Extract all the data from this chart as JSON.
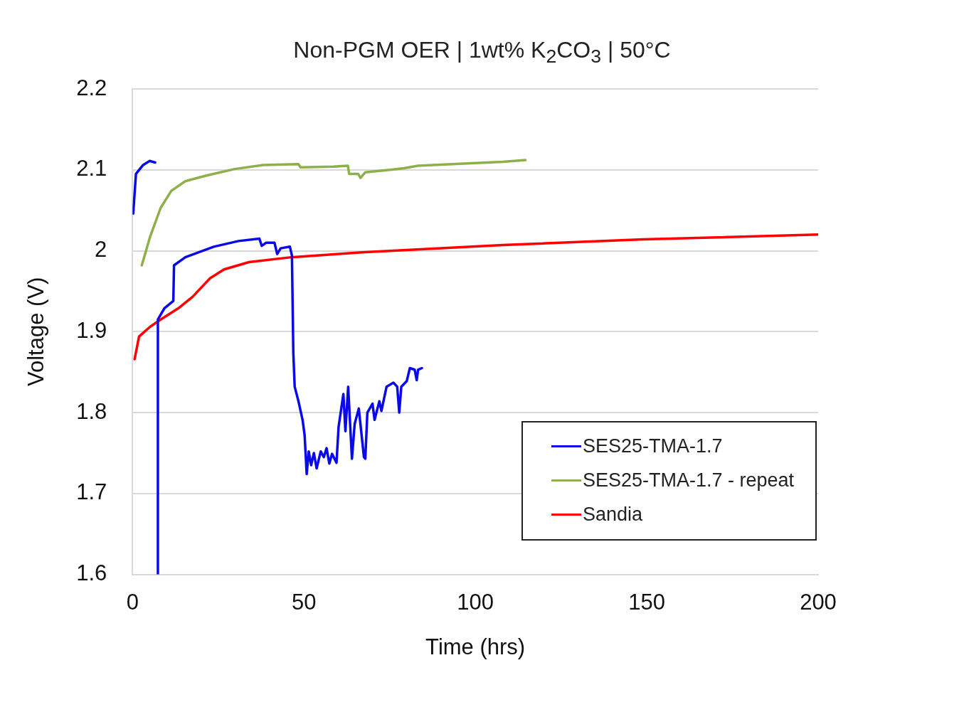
{
  "chart_data": {
    "type": "line",
    "title": "Non-PGM OER | 1wt% K$_{2}$CO$_{3}$ | 50°C",
    "xlabel": "Time (hrs)",
    "ylabel": "Voltage (V)",
    "xlim": [
      0,
      200
    ],
    "xticks": [
      0,
      50,
      100,
      150,
      200
    ],
    "ylim": [
      1.6,
      2.2
    ],
    "yticks": [
      1.6,
      1.7,
      1.8,
      1.9,
      2,
      2.1,
      2.2
    ],
    "grid": "y",
    "legend": "bottom right",
    "marker": "none",
    "line_style": "solid",
    "series": [
      {
        "name": "SES25-TMA-1.7",
        "color": "#0a0ae6",
        "x": [
          0.2,
          1,
          3.1,
          5,
          6.6,
          7.0,
          7.4,
          7.4,
          9.3,
          11.9,
          12.1,
          15.4,
          23.7,
          30.9,
          37,
          37.7,
          39,
          41.4,
          42.2,
          43.2,
          45.9,
          46.5,
          46.9,
          47.3,
          48.4,
          49.6,
          50.2,
          50.8,
          51.4,
          52.1,
          52.9,
          53.7,
          54.9,
          55.8,
          56.6,
          57.4,
          58.2,
          59.5,
          60.1,
          61.5,
          62.1,
          62.9,
          64,
          64.8,
          66,
          66.7,
          67.5,
          67.9,
          68.5,
          70,
          70.6,
          72,
          72.6,
          74.1,
          76.1,
          77.2,
          77.8,
          78.4,
          80,
          80.9,
          82.3,
          82.9,
          83.3,
          84.4
        ],
        "values": [
          2.046,
          2.095,
          2.106,
          2.111,
          2.109,
          null,
          1.6,
          1.915,
          1.929,
          1.938,
          1.982,
          1.992,
          2.005,
          2.012,
          2.015,
          2.006,
          2.01,
          2.01,
          1.996,
          2.003,
          2.005,
          1.994,
          1.874,
          1.832,
          1.814,
          1.791,
          1.772,
          1.724,
          1.752,
          1.735,
          1.75,
          1.731,
          1.752,
          1.745,
          1.756,
          1.737,
          1.749,
          1.738,
          1.782,
          1.823,
          1.777,
          1.832,
          1.743,
          1.786,
          1.805,
          1.777,
          1.745,
          1.743,
          1.8,
          1.811,
          1.791,
          1.814,
          1.802,
          1.832,
          1.837,
          1.832,
          1.8,
          1.832,
          1.839,
          1.855,
          1.853,
          1.84,
          1.853,
          1.855
        ]
      },
      {
        "name": "SES25-TMA-1.7 - repeat",
        "color": "#8db04a",
        "x": [
          2.7,
          5.1,
          8.2,
          11.3,
          15.4,
          21.6,
          29.8,
          38.1,
          48.4,
          49,
          58.6,
          62.8,
          63.2,
          65.8,
          66.5,
          67.9,
          75.1,
          79.2,
          83.3,
          97.7,
          108,
          114.6
        ],
        "values": [
          1.982,
          2.017,
          2.053,
          2.074,
          2.086,
          2.093,
          2.101,
          2.106,
          2.107,
          2.103,
          2.104,
          2.105,
          2.095,
          2.095,
          2.09,
          2.097,
          2.1,
          2.102,
          2.105,
          2.108,
          2.11,
          2.112
        ]
      },
      {
        "name": "Sandia",
        "color": "#ff0000",
        "x": [
          0.6,
          1.9,
          5.1,
          8.2,
          13.4,
          17.5,
          22.6,
          26.7,
          34,
          46.3,
          66.9,
          108,
          149,
          200
        ],
        "values": [
          1.866,
          1.894,
          1.906,
          1.915,
          1.929,
          1.943,
          1.966,
          1.977,
          1.986,
          1.992,
          1.998,
          2.007,
          2.014,
          2.02
        ]
      }
    ]
  }
}
